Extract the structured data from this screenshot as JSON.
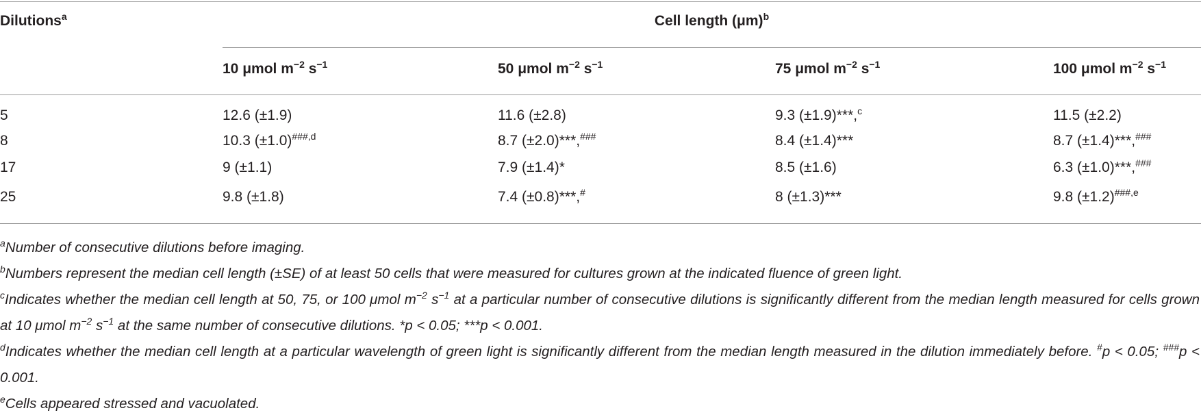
{
  "table": {
    "header": {
      "stub": [
        "Dilutions",
        {
          "sup": "a"
        }
      ],
      "group": [
        "Cell length (μm)",
        {
          "sup": "b"
        }
      ],
      "columns": [
        [
          "10 μmol m",
          {
            "sup": "−2"
          },
          " s",
          {
            "sup": "−1"
          }
        ],
        [
          "50 μmol m",
          {
            "sup": "−2"
          },
          " s",
          {
            "sup": "−1"
          }
        ],
        [
          "75 μmol m",
          {
            "sup": "−2"
          },
          " s",
          {
            "sup": "−1"
          }
        ],
        [
          "100 μmol m",
          {
            "sup": "−2"
          },
          " s",
          {
            "sup": "−1"
          }
        ]
      ]
    },
    "rows": [
      [
        [
          "5"
        ],
        [
          "12.6 (±1.9)"
        ],
        [
          "11.6 (±2.8)"
        ],
        [
          "9.3 (±1.9)***,",
          {
            "sup": "c"
          }
        ],
        [
          "11.5 (±2.2)"
        ]
      ],
      [
        [
          "8"
        ],
        [
          "10.3 (±1.0)",
          {
            "sup": "###,d"
          }
        ],
        [
          "8.7 (±2.0)***,",
          {
            "sup": "###"
          }
        ],
        [
          "8.4 (±1.4)***"
        ],
        [
          "8.7 (±1.4)***,",
          {
            "sup": "###"
          }
        ]
      ],
      [
        [
          "17"
        ],
        [
          "9 (±1.1)"
        ],
        [
          "7.9 (±1.4)*"
        ],
        [
          "8.5 (±1.6)"
        ],
        [
          "6.3 (±1.0)***,",
          {
            "sup": "###"
          }
        ]
      ],
      [
        [
          "25"
        ],
        [
          "9.8 (±1.8)"
        ],
        [
          "7.4 (±0.8)***,",
          {
            "sup": "#"
          }
        ],
        [
          "8 (±1.3)***"
        ],
        [
          "9.8 (±1.2)",
          {
            "sup": "###,e"
          }
        ]
      ]
    ]
  },
  "footnotes": [
    [
      {
        "sup": "a"
      },
      "Number of consecutive dilutions before imaging."
    ],
    [
      {
        "sup": "b"
      },
      "Numbers represent the median cell length (±SE) of at least 50 cells that were measured for cultures grown at the indicated fluence of green light."
    ],
    [
      {
        "sup": "c"
      },
      "Indicates whether the median cell length at 50, 75, or 100 μmol m",
      {
        "sup": "−2"
      },
      " s",
      {
        "sup": "−1"
      },
      " at a particular number of consecutive dilutions is significantly different from the median length measured for cells grown at 10 μmol m",
      {
        "sup": "−2"
      },
      " s",
      {
        "sup": "−1"
      },
      " at the same number of consecutive dilutions. *p < 0.05; ***p < 0.001."
    ],
    [
      {
        "sup": "d"
      },
      "Indicates whether the median cell length at a particular wavelength of green light is significantly different from the median length measured in the dilution immediately before. ",
      {
        "sup": "#"
      },
      "p < 0.05; ",
      {
        "sup": "###"
      },
      "p < 0.001."
    ],
    [
      {
        "sup": "e"
      },
      "Cells appeared stressed and vacuolated."
    ]
  ]
}
